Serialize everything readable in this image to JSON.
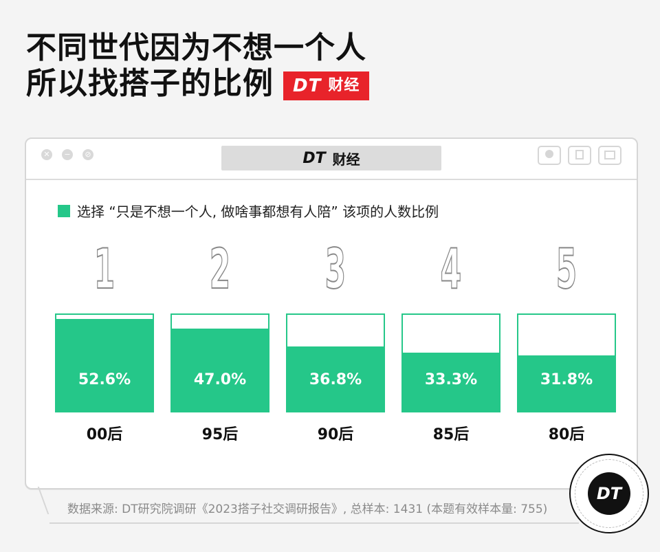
{
  "title": {
    "line1": "不同世代因为不想一个人",
    "line2": "所以找搭子的比例"
  },
  "brand": {
    "dt": "DT",
    "name": "财经",
    "color": "#e8232a"
  },
  "window": {
    "title_dt": "DT",
    "title_name": "财经"
  },
  "legend": {
    "label": "选择 “只是不想一个人, 做啥事都想有人陪” 该项的人数比例",
    "color": "#25c789"
  },
  "chart_data": {
    "type": "bar",
    "categories": [
      "00后",
      "95后",
      "90后",
      "85后",
      "80后"
    ],
    "ranks": [
      "1",
      "2",
      "3",
      "4",
      "5"
    ],
    "values": [
      52.6,
      47.0,
      36.8,
      33.3,
      31.8
    ],
    "value_labels": [
      "52.6%",
      "47.0%",
      "36.8%",
      "33.3%",
      "31.8%"
    ],
    "ylim": [
      0,
      55
    ],
    "bar_color": "#25c789"
  },
  "source": "数据来源: DT研究院调研《2023搭子社交调研报告》, 总样本: 1431 (本题有效样本量: 755)",
  "corner_logo": "DT"
}
